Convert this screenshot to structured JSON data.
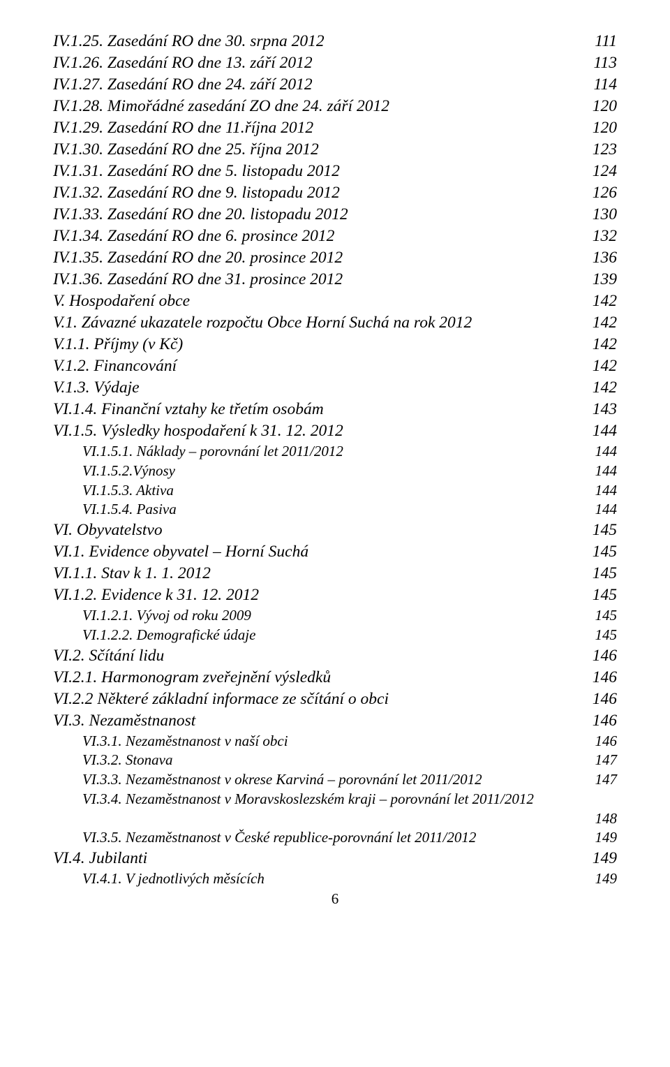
{
  "entries": [
    {
      "cls": "it ind0",
      "label": "IV.1.25. Zasedání RO dne 30. srpna 2012",
      "page": "111"
    },
    {
      "cls": "it ind0",
      "label": "IV.1.26. Zasedání RO dne 13. září 2012",
      "page": "113"
    },
    {
      "cls": "it ind0",
      "label": "IV.1.27. Zasedání RO dne 24. září 2012",
      "page": "114"
    },
    {
      "cls": "it ind0",
      "label": "IV.1.28. Mimořádné zasedání ZO dne 24. září 2012",
      "page": "120"
    },
    {
      "cls": "it ind0",
      "label": "IV.1.29. Zasedání RO dne 11.října 2012",
      "page": "120"
    },
    {
      "cls": "it ind0",
      "label": "IV.1.30. Zasedání RO dne 25. října 2012",
      "page": "123"
    },
    {
      "cls": "it ind0",
      "label": "IV.1.31. Zasedání RO dne 5. listopadu 2012",
      "page": "124"
    },
    {
      "cls": "it ind0",
      "label": "IV.1.32. Zasedání RO dne 9. listopadu 2012",
      "page": "126"
    },
    {
      "cls": "it ind0",
      "label": "IV.1.33. Zasedání RO dne 20. listopadu 2012",
      "page": "130"
    },
    {
      "cls": "it ind0",
      "label": "IV.1.34. Zasedání RO dne 6. prosince 2012",
      "page": "132"
    },
    {
      "cls": "it ind0",
      "label": "IV.1.35. Zasedání RO dne 20. prosince 2012",
      "page": "136"
    },
    {
      "cls": "it ind0",
      "label": "IV.1.36. Zasedání RO dne 31. prosince 2012",
      "page": "139"
    },
    {
      "cls": "up ind0",
      "label": "V. Hospodaření obce",
      "page": "142"
    },
    {
      "cls": "it ind0",
      "label": "V.1. Závazné ukazatele rozpočtu Obce Horní Suchá na rok 2012",
      "page": "142"
    },
    {
      "cls": "it ind0",
      "label": "V.1.1. Příjmy (v Kč)",
      "page": "142"
    },
    {
      "cls": "it ind0",
      "label": "V.1.2. Financování",
      "page": "142"
    },
    {
      "cls": "it ind0",
      "label": "V.1.3. Výdaje",
      "page": "142"
    },
    {
      "cls": "it ind0",
      "label": "VI.1.4. Finanční vztahy ke třetím osobám",
      "page": "143"
    },
    {
      "cls": "it ind0",
      "label": "VI.1.5. Výsledky hospodaření k 31. 12. 2012",
      "page": "144"
    },
    {
      "cls": "sub ind1",
      "label": "VI.1.5.1. Náklady – porovnání let 2011/2012",
      "page": "144"
    },
    {
      "cls": "sub ind1",
      "label": "VI.1.5.2.Výnosy",
      "page": "144"
    },
    {
      "cls": "sub ind1",
      "label": "VI.1.5.3. Aktiva",
      "page": "144"
    },
    {
      "cls": "sub ind1",
      "label": "VI.1.5.4. Pasiva",
      "page": "144"
    },
    {
      "cls": "up ind0",
      "label": "VI. Obyvatelstvo",
      "page": "145"
    },
    {
      "cls": "it ind0",
      "label": "VI.1. Evidence obyvatel – Horní Suchá",
      "page": "145"
    },
    {
      "cls": "it ind0",
      "label": "VI.1.1. Stav k 1. 1. 2012",
      "page": "145"
    },
    {
      "cls": "it ind0",
      "label": "VI.1.2. Evidence k 31. 12. 2012",
      "page": "145"
    },
    {
      "cls": "sub ind1",
      "label": "VI.1.2.1. Vývoj od roku 2009",
      "page": "145"
    },
    {
      "cls": "sub ind1",
      "label": "VI.1.2.2. Demografické údaje",
      "page": "145"
    },
    {
      "cls": "it ind0",
      "label": "VI.2. Sčítání lidu",
      "page": "146"
    },
    {
      "cls": "it ind0",
      "label": "VI.2.1. Harmonogram zveřejnění výsledků",
      "page": "146"
    },
    {
      "cls": "it ind0",
      "label": "VI.2.2 Některé základní informace ze sčítání o obci",
      "page": "146"
    },
    {
      "cls": "it ind0",
      "label": "VI.3. Nezaměstnanost",
      "page": "146"
    },
    {
      "cls": "sub ind1",
      "label": "VI.3.1. Nezaměstnanost v naší obci",
      "page": "146"
    },
    {
      "cls": "sub ind1",
      "label": "VI.3.2. Stonava",
      "page": "147"
    },
    {
      "cls": "sub ind1",
      "label": "VI.3.3. Nezaměstnanost v okrese Karviná – porovnání let 2011/2012",
      "page": "147"
    },
    {
      "cls": "sub ind1",
      "label": "VI.3.4. Nezaměstnanost v Moravskoslezském kraji – porovnání let 2011/2012",
      "page": ""
    },
    {
      "cls": "sub ind1",
      "label": "",
      "page": "148"
    },
    {
      "cls": "sub ind1",
      "label": "VI.3.5. Nezaměstnanost v České republice-porovnání let 2011/2012",
      "page": "149"
    },
    {
      "cls": "it ind0",
      "label": "VI.4. Jubilanti",
      "page": "149"
    },
    {
      "cls": "sub ind1",
      "label": "VI.4.1. V jednotlivých měsících",
      "page": "149"
    }
  ],
  "pageNumber": "6"
}
